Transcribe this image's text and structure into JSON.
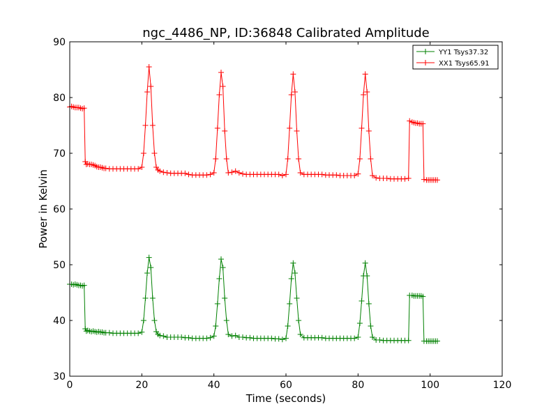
{
  "chart_data": {
    "type": "line",
    "title": "ngc_4486_NP, ID:36848 Calibrated Amplitude",
    "xlabel": "Time (seconds)",
    "ylabel": "Power in Kelvin",
    "xlim": [
      0,
      120
    ],
    "ylim": [
      30,
      90
    ],
    "xticks": [
      0,
      20,
      40,
      60,
      80,
      100,
      120
    ],
    "yticks": [
      30,
      40,
      50,
      60,
      70,
      80,
      90
    ],
    "grid": false,
    "legend_position": "top-right",
    "marker": "+",
    "series": [
      {
        "name": "YY1 Tsys37.32",
        "color": "#008000",
        "points": [
          [
            0,
            46.5
          ],
          [
            0.5,
            46.5
          ],
          [
            1,
            46.4
          ],
          [
            1.5,
            46.5
          ],
          [
            2,
            46.4
          ],
          [
            2.5,
            46.3
          ],
          [
            3,
            46.3
          ],
          [
            3.5,
            46.2
          ],
          [
            4,
            46.3
          ],
          [
            4.3,
            38.5
          ],
          [
            4.6,
            38.1
          ],
          [
            5,
            38.2
          ],
          [
            5.5,
            38.1
          ],
          [
            6,
            38.0
          ],
          [
            6.5,
            38.1
          ],
          [
            7,
            38.0
          ],
          [
            7.5,
            37.9
          ],
          [
            8,
            38.0
          ],
          [
            8.5,
            37.9
          ],
          [
            9,
            37.9
          ],
          [
            9.5,
            37.8
          ],
          [
            10,
            37.8
          ],
          [
            11,
            37.8
          ],
          [
            12,
            37.7
          ],
          [
            13,
            37.7
          ],
          [
            14,
            37.7
          ],
          [
            15,
            37.7
          ],
          [
            16,
            37.7
          ],
          [
            17,
            37.7
          ],
          [
            18,
            37.7
          ],
          [
            19,
            37.7
          ],
          [
            20,
            37.9
          ],
          [
            20.5,
            40.0
          ],
          [
            21,
            44.0
          ],
          [
            21.5,
            48.5
          ],
          [
            22,
            51.3
          ],
          [
            22.5,
            49.5
          ],
          [
            23,
            44.0
          ],
          [
            23.5,
            40.0
          ],
          [
            24,
            38.0
          ],
          [
            24.5,
            37.5
          ],
          [
            25,
            37.3
          ],
          [
            26,
            37.2
          ],
          [
            27,
            37.0
          ],
          [
            28,
            37.0
          ],
          [
            29,
            37.0
          ],
          [
            30,
            37.0
          ],
          [
            31,
            37.0
          ],
          [
            32,
            36.9
          ],
          [
            33,
            36.9
          ],
          [
            34,
            36.8
          ],
          [
            35,
            36.8
          ],
          [
            36,
            36.8
          ],
          [
            37,
            36.8
          ],
          [
            38,
            36.8
          ],
          [
            39,
            36.9
          ],
          [
            40,
            37.2
          ],
          [
            40.5,
            39.0
          ],
          [
            41,
            43.0
          ],
          [
            41.5,
            47.5
          ],
          [
            42,
            51.0
          ],
          [
            42.5,
            49.5
          ],
          [
            43,
            44.0
          ],
          [
            43.5,
            40.0
          ],
          [
            44,
            37.5
          ],
          [
            45,
            37.2
          ],
          [
            46,
            37.3
          ],
          [
            47,
            37.0
          ],
          [
            48,
            37.0
          ],
          [
            49,
            36.9
          ],
          [
            50,
            36.9
          ],
          [
            51,
            36.8
          ],
          [
            52,
            36.8
          ],
          [
            53,
            36.8
          ],
          [
            54,
            36.8
          ],
          [
            55,
            36.8
          ],
          [
            56,
            36.8
          ],
          [
            57,
            36.7
          ],
          [
            58,
            36.7
          ],
          [
            59,
            36.6
          ],
          [
            60,
            36.8
          ],
          [
            60.5,
            39.0
          ],
          [
            61,
            43.0
          ],
          [
            61.5,
            47.5
          ],
          [
            62,
            50.3
          ],
          [
            62.5,
            48.5
          ],
          [
            63,
            44.0
          ],
          [
            63.5,
            40.0
          ],
          [
            64,
            37.5
          ],
          [
            65,
            36.9
          ],
          [
            66,
            36.9
          ],
          [
            67,
            36.9
          ],
          [
            68,
            36.9
          ],
          [
            69,
            36.9
          ],
          [
            70,
            36.9
          ],
          [
            71,
            36.8
          ],
          [
            72,
            36.8
          ],
          [
            73,
            36.8
          ],
          [
            74,
            36.8
          ],
          [
            75,
            36.8
          ],
          [
            76,
            36.8
          ],
          [
            77,
            36.8
          ],
          [
            78,
            36.8
          ],
          [
            79,
            36.8
          ],
          [
            80,
            37.0
          ],
          [
            80.5,
            39.5
          ],
          [
            81,
            43.5
          ],
          [
            81.5,
            48.0
          ],
          [
            82,
            50.3
          ],
          [
            82.5,
            48.0
          ],
          [
            83,
            43.0
          ],
          [
            83.5,
            39.0
          ],
          [
            84,
            37.0
          ],
          [
            85,
            36.5
          ],
          [
            86,
            36.5
          ],
          [
            87,
            36.4
          ],
          [
            88,
            36.4
          ],
          [
            89,
            36.4
          ],
          [
            90,
            36.4
          ],
          [
            91,
            36.4
          ],
          [
            92,
            36.4
          ],
          [
            93,
            36.4
          ],
          [
            94,
            36.4
          ],
          [
            94.3,
            44.5
          ],
          [
            95,
            44.5
          ],
          [
            95.5,
            44.4
          ],
          [
            96,
            44.4
          ],
          [
            96.5,
            44.4
          ],
          [
            97,
            44.4
          ],
          [
            97.5,
            44.4
          ],
          [
            98,
            44.3
          ],
          [
            98.3,
            36.3
          ],
          [
            99,
            36.3
          ],
          [
            99.5,
            36.3
          ],
          [
            100,
            36.3
          ],
          [
            100.5,
            36.3
          ],
          [
            101,
            36.3
          ],
          [
            101.5,
            36.3
          ],
          [
            102,
            36.3
          ]
        ]
      },
      {
        "name": "XX1 Tsys65.91",
        "color": "#ff0000",
        "points": [
          [
            0,
            78.3
          ],
          [
            0.5,
            78.4
          ],
          [
            1,
            78.3
          ],
          [
            1.5,
            78.2
          ],
          [
            2,
            78.2
          ],
          [
            2.5,
            78.2
          ],
          [
            3,
            78.1
          ],
          [
            3.5,
            78.0
          ],
          [
            4,
            78.1
          ],
          [
            4.3,
            68.5
          ],
          [
            4.6,
            68.0
          ],
          [
            5,
            68.1
          ],
          [
            5.5,
            68.0
          ],
          [
            6,
            68.0
          ],
          [
            6.5,
            67.9
          ],
          [
            7,
            67.8
          ],
          [
            7.5,
            67.6
          ],
          [
            8,
            67.5
          ],
          [
            8.5,
            67.5
          ],
          [
            9,
            67.4
          ],
          [
            9.5,
            67.3
          ],
          [
            10,
            67.3
          ],
          [
            11,
            67.2
          ],
          [
            12,
            67.2
          ],
          [
            13,
            67.2
          ],
          [
            14,
            67.2
          ],
          [
            15,
            67.2
          ],
          [
            16,
            67.2
          ],
          [
            17,
            67.2
          ],
          [
            18,
            67.2
          ],
          [
            19,
            67.2
          ],
          [
            20,
            67.5
          ],
          [
            20.5,
            70.0
          ],
          [
            21,
            75.0
          ],
          [
            21.5,
            81.0
          ],
          [
            22,
            85.5
          ],
          [
            22.5,
            82.0
          ],
          [
            23,
            75.0
          ],
          [
            23.5,
            70.0
          ],
          [
            24,
            67.5
          ],
          [
            24.5,
            67.0
          ],
          [
            25,
            66.8
          ],
          [
            26,
            66.6
          ],
          [
            27,
            66.5
          ],
          [
            28,
            66.4
          ],
          [
            29,
            66.4
          ],
          [
            30,
            66.4
          ],
          [
            31,
            66.4
          ],
          [
            32,
            66.4
          ],
          [
            33,
            66.2
          ],
          [
            34,
            66.1
          ],
          [
            35,
            66.1
          ],
          [
            36,
            66.1
          ],
          [
            37,
            66.1
          ],
          [
            38,
            66.1
          ],
          [
            39,
            66.2
          ],
          [
            40,
            66.5
          ],
          [
            40.5,
            69.0
          ],
          [
            41,
            74.5
          ],
          [
            41.5,
            80.5
          ],
          [
            42,
            84.5
          ],
          [
            42.5,
            82.0
          ],
          [
            43,
            74.0
          ],
          [
            43.5,
            69.0
          ],
          [
            44,
            66.5
          ],
          [
            45,
            66.6
          ],
          [
            46,
            66.8
          ],
          [
            47,
            66.5
          ],
          [
            48,
            66.3
          ],
          [
            49,
            66.2
          ],
          [
            50,
            66.2
          ],
          [
            51,
            66.2
          ],
          [
            52,
            66.2
          ],
          [
            53,
            66.2
          ],
          [
            54,
            66.2
          ],
          [
            55,
            66.2
          ],
          [
            56,
            66.2
          ],
          [
            57,
            66.2
          ],
          [
            58,
            66.2
          ],
          [
            59,
            66.0
          ],
          [
            60,
            66.2
          ],
          [
            60.5,
            69.0
          ],
          [
            61,
            74.5
          ],
          [
            61.5,
            80.5
          ],
          [
            62,
            84.2
          ],
          [
            62.5,
            81.0
          ],
          [
            63,
            74.0
          ],
          [
            63.5,
            69.0
          ],
          [
            64,
            66.5
          ],
          [
            65,
            66.2
          ],
          [
            66,
            66.2
          ],
          [
            67,
            66.2
          ],
          [
            68,
            66.2
          ],
          [
            69,
            66.2
          ],
          [
            70,
            66.2
          ],
          [
            71,
            66.1
          ],
          [
            72,
            66.1
          ],
          [
            73,
            66.1
          ],
          [
            74,
            66.1
          ],
          [
            75,
            66.0
          ],
          [
            76,
            66.0
          ],
          [
            77,
            66.0
          ],
          [
            78,
            66.0
          ],
          [
            79,
            66.0
          ],
          [
            80,
            66.3
          ],
          [
            80.5,
            69.0
          ],
          [
            81,
            74.5
          ],
          [
            81.5,
            80.5
          ],
          [
            82,
            84.2
          ],
          [
            82.5,
            81.0
          ],
          [
            83,
            74.0
          ],
          [
            83.5,
            69.0
          ],
          [
            84,
            66.0
          ],
          [
            85,
            65.6
          ],
          [
            86,
            65.5
          ],
          [
            87,
            65.5
          ],
          [
            88,
            65.5
          ],
          [
            89,
            65.4
          ],
          [
            90,
            65.4
          ],
          [
            91,
            65.4
          ],
          [
            92,
            65.4
          ],
          [
            93,
            65.4
          ],
          [
            94,
            65.5
          ],
          [
            94.3,
            75.8
          ],
          [
            95,
            75.6
          ],
          [
            95.5,
            75.5
          ],
          [
            96,
            75.4
          ],
          [
            96.5,
            75.4
          ],
          [
            97,
            75.3
          ],
          [
            97.5,
            75.3
          ],
          [
            98,
            75.3
          ],
          [
            98.3,
            65.3
          ],
          [
            99,
            65.2
          ],
          [
            99.5,
            65.2
          ],
          [
            100,
            65.2
          ],
          [
            100.5,
            65.2
          ],
          [
            101,
            65.2
          ],
          [
            101.5,
            65.2
          ],
          [
            102,
            65.2
          ]
        ]
      }
    ]
  }
}
